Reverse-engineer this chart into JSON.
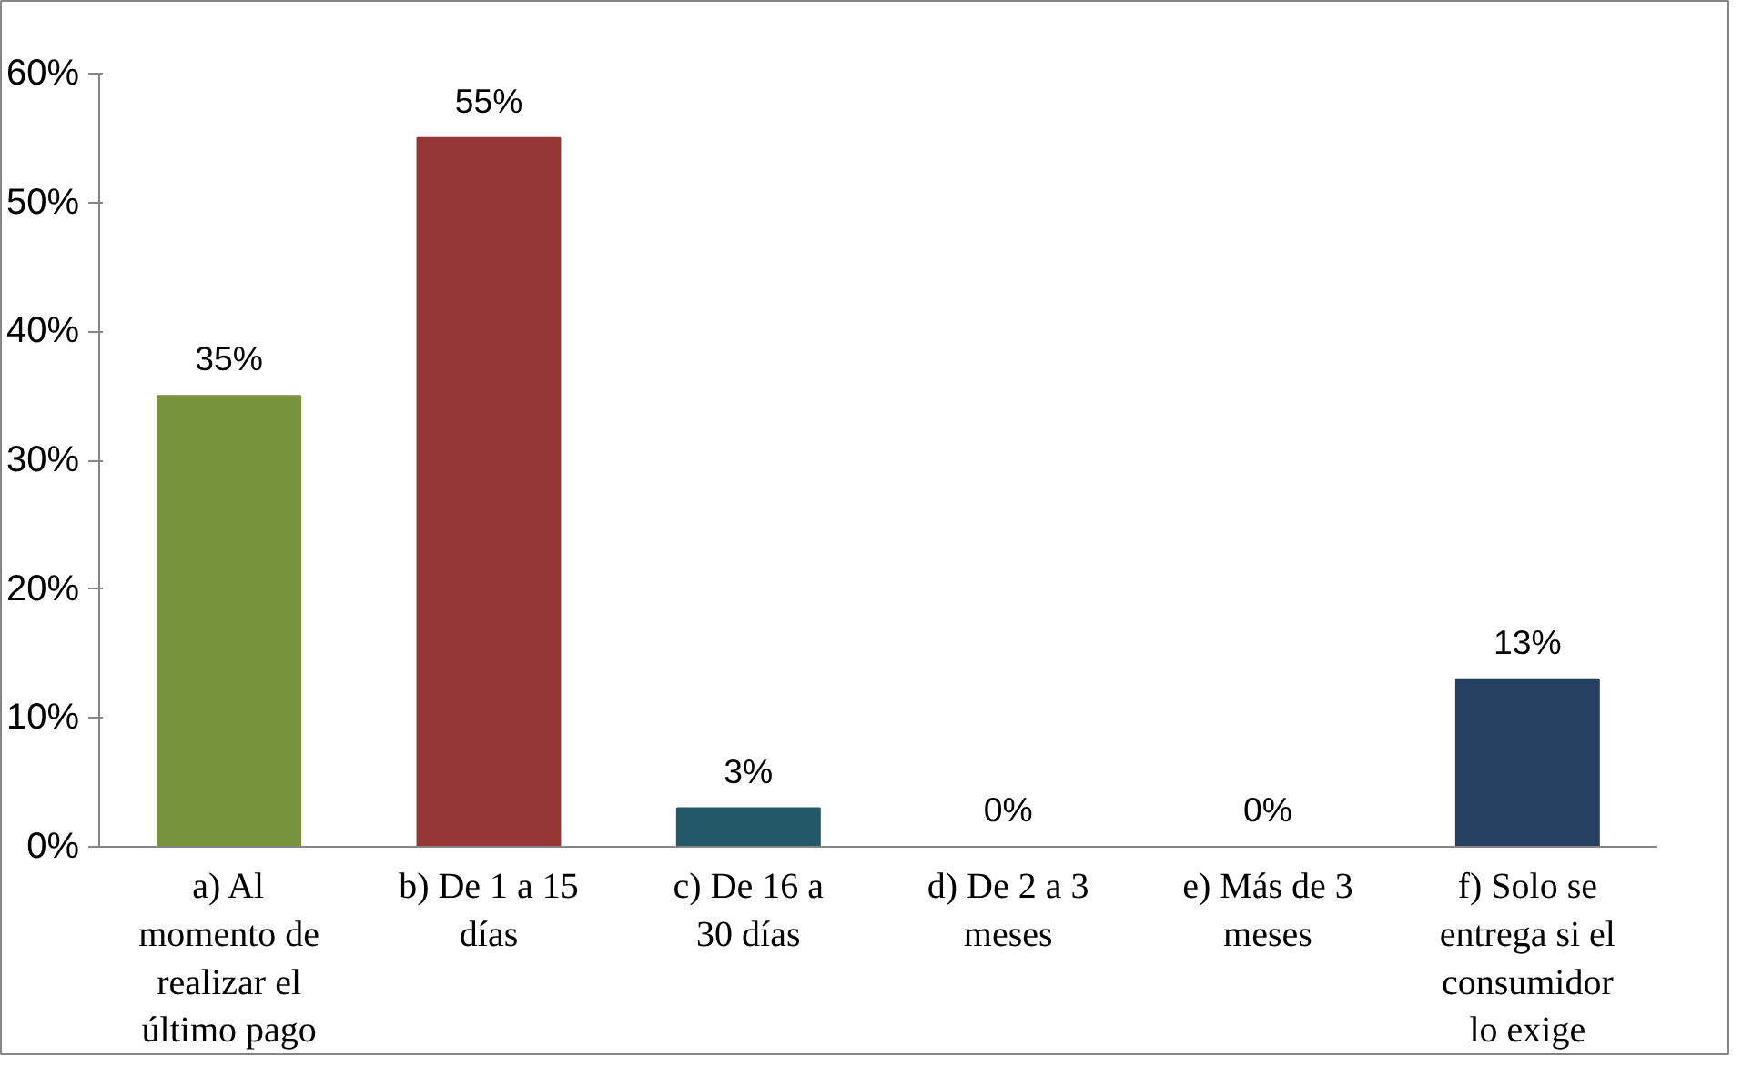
{
  "chart_data": {
    "type": "bar",
    "categories": [
      "a) Al\nmomento de\nrealizar el\núltimo pago",
      "b) De 1 a 15\ndías",
      "c) De 16 a\n30 días",
      "d) De 2 a 3\nmeses",
      "e) Más de 3\nmeses",
      "f) Solo se\nentrega si el\nconsumidor\nlo exige"
    ],
    "values": [
      35,
      55,
      3,
      0,
      0,
      13
    ],
    "colors": [
      "#77933c",
      "#953735",
      "#215968",
      "#4f81bd",
      "#4f81bd",
      "#254061"
    ],
    "value_labels": [
      "35%",
      "55%",
      "3%",
      "0%",
      "0%",
      "13%"
    ],
    "ylim": [
      0,
      60
    ],
    "yticks": [
      {
        "value": 0,
        "label": "0%"
      },
      {
        "value": 10,
        "label": "10%"
      },
      {
        "value": 20,
        "label": "20%"
      },
      {
        "value": 30,
        "label": "30%"
      },
      {
        "value": 40,
        "label": "40%"
      },
      {
        "value": 50,
        "label": "50%"
      },
      {
        "value": 60,
        "label": "60%"
      }
    ],
    "grid": false
  }
}
